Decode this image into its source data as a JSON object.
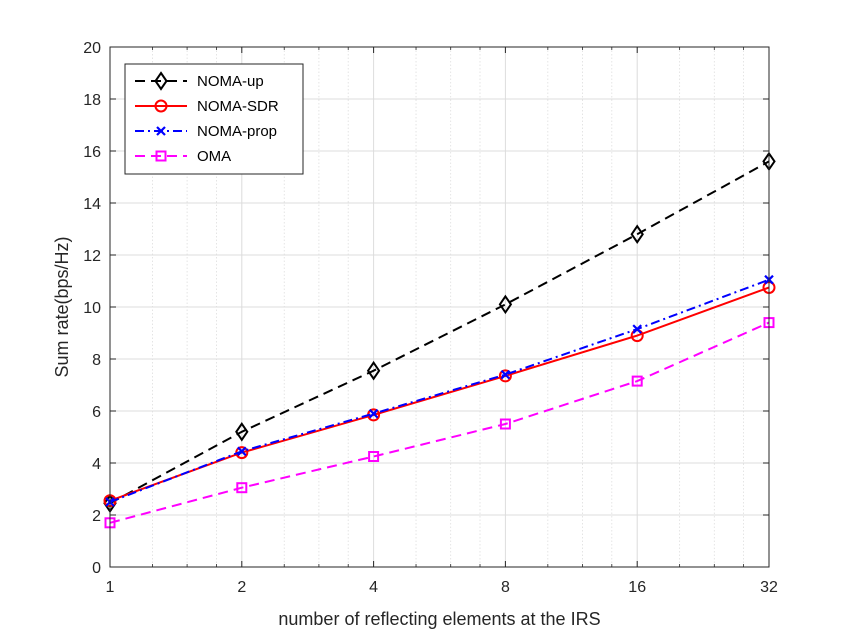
{
  "chart_data": {
    "type": "line",
    "title": "",
    "xlabel": "number of reflecting elements at the IRS",
    "ylabel": "Sum rate(bps/Hz)",
    "x_scale": "log2",
    "x": [
      1,
      2,
      4,
      8,
      16,
      32
    ],
    "xticks": [
      "1",
      "2",
      "4",
      "8",
      "16",
      "32"
    ],
    "yticks": [
      "0",
      "2",
      "4",
      "6",
      "8",
      "10",
      "12",
      "14",
      "16",
      "18",
      "20"
    ],
    "xlim": [
      1,
      32
    ],
    "ylim": [
      0,
      20
    ],
    "grid": true,
    "legend_position": "top-left",
    "series": [
      {
        "name": "NOMA-up",
        "values": [
          2.45,
          5.2,
          7.55,
          10.1,
          12.8,
          15.6
        ],
        "color": "#000000",
        "dash": "dashed",
        "marker": "diamond"
      },
      {
        "name": "NOMA-SDR",
        "values": [
          2.55,
          4.4,
          5.85,
          7.35,
          8.9,
          10.75
        ],
        "color": "#ff0000",
        "dash": "solid",
        "marker": "circle"
      },
      {
        "name": "NOMA-prop",
        "values": [
          2.5,
          4.45,
          5.9,
          7.4,
          9.15,
          11.05
        ],
        "color": "#0000ff",
        "dash": "dashdot",
        "marker": "x"
      },
      {
        "name": "OMA",
        "values": [
          1.7,
          3.05,
          4.25,
          5.5,
          7.15,
          9.4
        ],
        "color": "#ff00ff",
        "dash": "dashed",
        "marker": "square"
      }
    ]
  }
}
